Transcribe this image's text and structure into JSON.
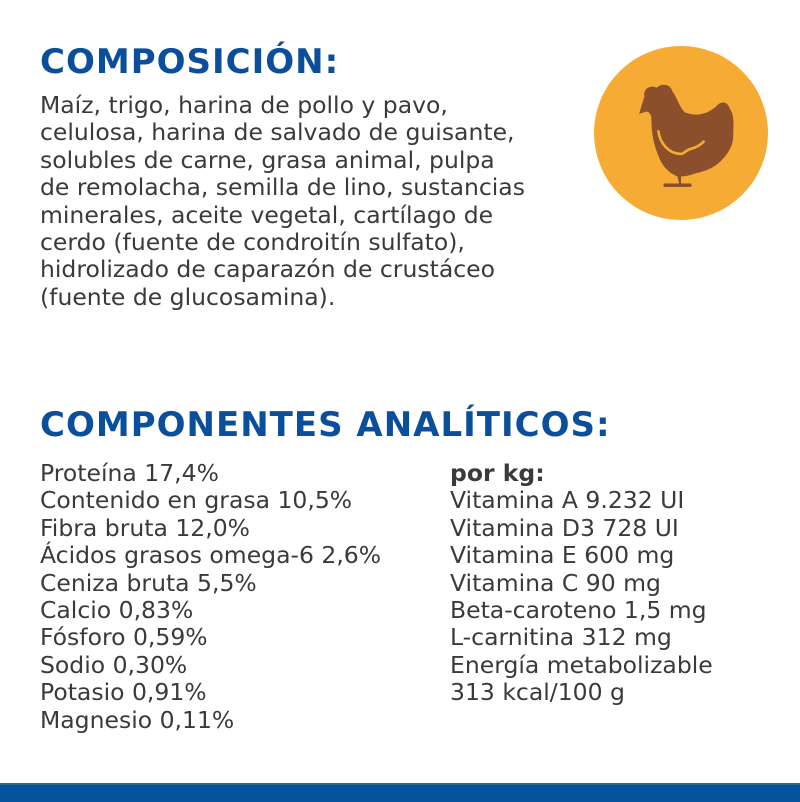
{
  "composition": {
    "title": "COMPOSICIÓN:",
    "lines": [
      "Maíz, trigo, harina de pollo y pavo,",
      "celulosa, harina de salvado de guisante,",
      "solubles de carne, grasa animal, pulpa",
      "de remolacha, semilla de lino, sustancias",
      "minerales, aceite vegetal, cartílago de",
      "cerdo (fuente de condroitín sulfato),",
      "hidrolizado de caparazón de crustáceo",
      "(fuente de glucosamina)."
    ],
    "icon": "chicken-icon",
    "icon_bg_color": "#f5ab34",
    "icon_color": "#8b4f2c"
  },
  "analytics": {
    "title": "COMPONENTES ANALÍTICOS:",
    "left": [
      "Proteína 17,4%",
      "Contenido en grasa 10,5%",
      "Fibra bruta 12,0%",
      "Ácidos grasos omega-6 2,6%",
      "Ceniza bruta 5,5%",
      "Calcio 0,83%",
      "Fósforo 0,59%",
      "Sodio 0,30%",
      "Potasio 0,91%",
      "Magnesio 0,11%"
    ],
    "right_heading": "por kg:",
    "right": [
      "Vitamina A 9.232 UI",
      "Vitamina D3 728 UI",
      "Vitamina E 600 mg",
      "Vitamina C 90 mg",
      "Beta-caroteno 1,5 mg",
      "L-carnitina 312 mg",
      "Energía metabolizable",
      "313 kcal/100 g"
    ]
  },
  "colors": {
    "heading": "#0b4f9c",
    "footer_bar": "#05529f"
  }
}
